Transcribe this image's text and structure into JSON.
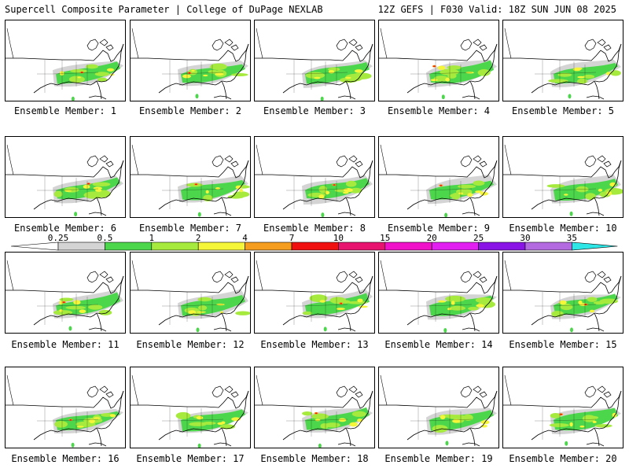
{
  "header": {
    "left": "Supercell Composite Parameter | College of DuPage NEXLAB",
    "right": "12Z GEFS | F030 Valid: 18Z SUN JUN 08 2025"
  },
  "panels": [
    {
      "label": "Ensemble Member: 1"
    },
    {
      "label": "Ensemble Member: 2"
    },
    {
      "label": "Ensemble Member: 3"
    },
    {
      "label": "Ensemble Member: 4"
    },
    {
      "label": "Ensemble Member: 5"
    },
    {
      "label": "Ensemble Member: 6"
    },
    {
      "label": "Ensemble Member: 7"
    },
    {
      "label": "Ensemble Member: 8"
    },
    {
      "label": "Ensemble Member: 9"
    },
    {
      "label": "Ensemble Member: 10"
    },
    {
      "label": "Ensemble Member: 11"
    },
    {
      "label": "Ensemble Member: 12"
    },
    {
      "label": "Ensemble Member: 13"
    },
    {
      "label": "Ensemble Member: 14"
    },
    {
      "label": "Ensemble Member: 15"
    },
    {
      "label": "Ensemble Member: 16"
    },
    {
      "label": "Ensemble Member: 17"
    },
    {
      "label": "Ensemble Member: 18"
    },
    {
      "label": "Ensemble Member: 19"
    },
    {
      "label": "Ensemble Member: 20"
    }
  ],
  "colorbar": {
    "ticks": [
      "0.25",
      "0.5",
      "1",
      "2",
      "4",
      "7",
      "10",
      "15",
      "20",
      "25",
      "30",
      "35"
    ],
    "colors": [
      "#d4d4d4",
      "#4cd64c",
      "#a5ea3c",
      "#f5f53a",
      "#f59d1e",
      "#f01010",
      "#e8136e",
      "#f012c8",
      "#e11ff0",
      "#8a14e6",
      "#b36ae0",
      "#2ee6e6"
    ]
  }
}
